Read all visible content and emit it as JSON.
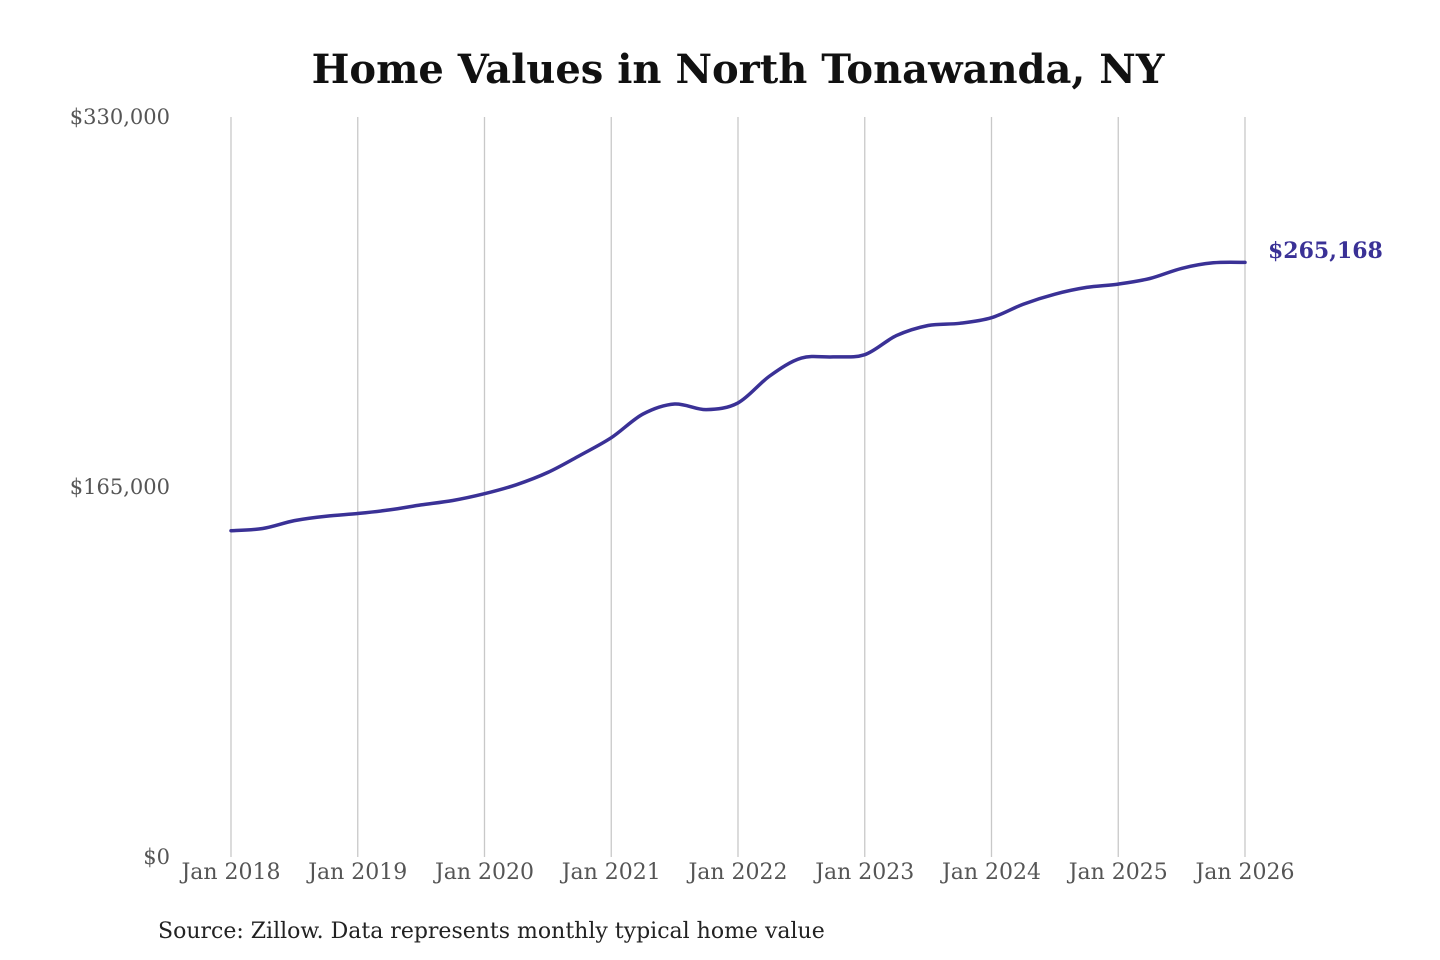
{
  "chart_data": {
    "type": "line",
    "title": "Home Values in North Tonawanda, NY",
    "xlabel": "",
    "ylabel": "",
    "ylim": [
      0,
      330000
    ],
    "y_ticks": [
      {
        "value": 0,
        "label": "$0"
      },
      {
        "value": 165000,
        "label": "$165,000"
      },
      {
        "value": 330000,
        "label": "$330,000"
      }
    ],
    "x_ticks": [
      {
        "value": 2018,
        "label": "Jan 2018"
      },
      {
        "value": 2019,
        "label": "Jan 2019"
      },
      {
        "value": 2020,
        "label": "Jan 2020"
      },
      {
        "value": 2021,
        "label": "Jan 2021"
      },
      {
        "value": 2022,
        "label": "Jan 2022"
      },
      {
        "value": 2023,
        "label": "Jan 2023"
      },
      {
        "value": 2024,
        "label": "Jan 2024"
      },
      {
        "value": 2025,
        "label": "Jan 2025"
      },
      {
        "value": 2026,
        "label": "Jan 2026"
      }
    ],
    "xlim": [
      2018,
      2026
    ],
    "grid": "vertical",
    "line_color": "#3a3196",
    "series": [
      {
        "x": [
          2018.0,
          2018.25,
          2018.5,
          2018.75,
          2019.0,
          2019.25,
          2019.5,
          2019.75,
          2020.0,
          2020.25,
          2020.5,
          2020.75,
          2021.0,
          2021.25,
          2021.5,
          2021.75,
          2022.0,
          2022.25,
          2022.5,
          2022.75,
          2023.0,
          2023.25,
          2023.5,
          2023.75,
          2024.0,
          2024.25,
          2024.5,
          2024.75,
          2025.0,
          2025.25,
          2025.5,
          2025.75,
          2026.0
        ],
        "values": [
          145500,
          146500,
          150000,
          152000,
          153200,
          154800,
          157000,
          159000,
          162000,
          166000,
          171500,
          179000,
          187000,
          197500,
          202000,
          199500,
          202500,
          214500,
          222500,
          223000,
          224000,
          232500,
          237000,
          238000,
          240500,
          246500,
          251000,
          254000,
          255500,
          258000,
          262500,
          265000,
          265168
        ]
      }
    ],
    "end_label": "$265,168",
    "source": "Source: Zillow. Data represents monthly typical home value"
  }
}
